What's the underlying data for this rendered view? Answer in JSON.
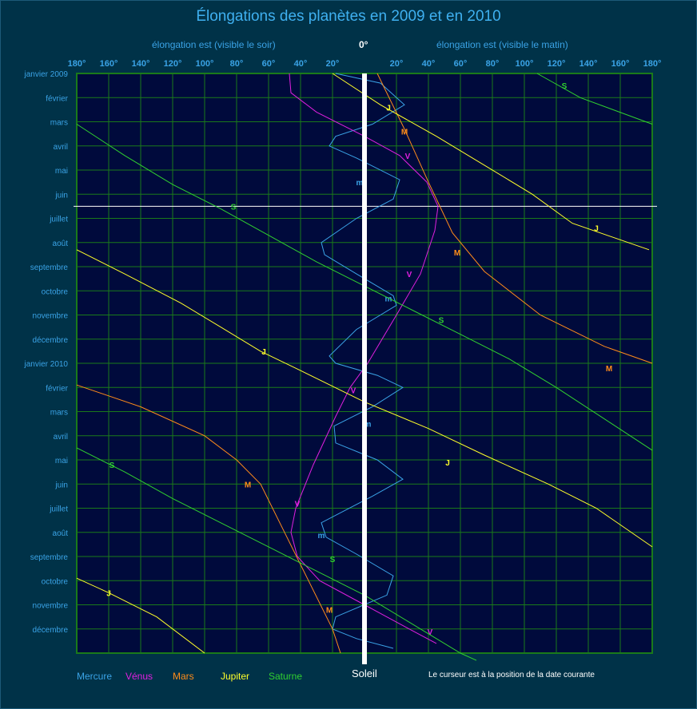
{
  "header": {
    "title": "Élongations des planètes en 2009 et en 2010",
    "left_label": "élongation est (visible le soir)",
    "right_label": "élongation est (visible le matin)",
    "zero_label": "0°"
  },
  "footer": {
    "sun_label": "Soleil",
    "cursor_note": "Le curseur est à la position de la date courante"
  },
  "colors": {
    "background": "#003248",
    "plot_background": "#000a3c",
    "grid": "#1a7a1a",
    "axis_text": "#3aa3e6",
    "mercure": "#3aa3e6",
    "venus": "#e020e0",
    "mars": "#ff8c1a",
    "jupiter": "#ffff2a",
    "saturne": "#30d030",
    "sun": "#ffffff"
  },
  "chart_data": {
    "type": "line",
    "title": "Élongations des planètes en 2009 et en 2010",
    "x_ticks": [
      "180°",
      "160°",
      "140°",
      "120°",
      "100°",
      "80°",
      "60°",
      "40°",
      "20°",
      "20°",
      "40°",
      "60°",
      "80°",
      "100°",
      "120°",
      "140°",
      "160°",
      "180°"
    ],
    "xlim": [
      -180,
      180
    ],
    "month_labels": [
      "janvier 2009",
      "février",
      "mars",
      "avril",
      "mai",
      "juin",
      "juillet",
      "août",
      "septembre",
      "octobre",
      "novembre",
      "décembre",
      "janvier 2010",
      "février",
      "mars",
      "avril",
      "mai",
      "juin",
      "juillet",
      "août",
      "septembre",
      "octobre",
      "novembre",
      "décembre"
    ],
    "cursor_month": 5,
    "grid": true,
    "series": [
      {
        "name": "Mercure",
        "key": "mercure",
        "marker": "m",
        "points": [
          [
            -18,
            0
          ],
          [
            10,
            0.4
          ],
          [
            25,
            1.3
          ],
          [
            5,
            2.1
          ],
          [
            -18,
            2.6
          ],
          [
            -22,
            3.0
          ],
          [
            -5,
            3.5
          ],
          [
            22,
            4.4
          ],
          [
            18,
            5.2
          ],
          [
            -5,
            6.0
          ],
          [
            -27,
            7.0
          ],
          [
            -25,
            7.5
          ],
          [
            -5,
            8.3
          ],
          [
            18,
            9.2
          ],
          [
            20,
            9.6
          ],
          [
            -5,
            10.6
          ],
          [
            -22,
            11.7
          ],
          [
            -18,
            12.0
          ],
          [
            8,
            12.5
          ],
          [
            24,
            13.0
          ],
          [
            5,
            13.8
          ],
          [
            -19,
            14.6
          ],
          [
            -18,
            15.3
          ],
          [
            8,
            16.0
          ],
          [
            24,
            16.8
          ],
          [
            5,
            17.5
          ],
          [
            -27,
            18.6
          ],
          [
            -24,
            19.2
          ],
          [
            -5,
            19.9
          ],
          [
            18,
            20.8
          ],
          [
            14,
            21.6
          ],
          [
            -18,
            22.5
          ],
          [
            -20,
            23.0
          ],
          [
            -5,
            23.4
          ],
          [
            18,
            23.8
          ]
        ],
        "labels": [
          [
            -3,
            4.5
          ],
          [
            15,
            9.3
          ],
          [
            2,
            14.5
          ],
          [
            -27,
            19.1
          ]
        ]
      },
      {
        "name": "Vénus",
        "key": "venus",
        "marker": "V",
        "points": [
          [
            -47,
            0
          ],
          [
            -46,
            0.8
          ],
          [
            -30,
            1.6
          ],
          [
            0,
            2.6
          ],
          [
            22,
            3.4
          ],
          [
            39,
            4.5
          ],
          [
            46,
            5.5
          ],
          [
            44,
            6.5
          ],
          [
            35,
            8.3
          ],
          [
            20,
            10.0
          ],
          [
            2,
            12.0
          ],
          [
            -9,
            13.0
          ],
          [
            -18,
            14.2
          ],
          [
            -32,
            16.2
          ],
          [
            -43,
            18.0
          ],
          [
            -46,
            19.0
          ],
          [
            -42,
            20.0
          ],
          [
            -28,
            21.0
          ],
          [
            0,
            22.0
          ],
          [
            28,
            23.0
          ],
          [
            45,
            23.6
          ]
        ],
        "labels": [
          [
            27,
            3.4
          ],
          [
            28,
            8.3
          ],
          [
            -7,
            13.1
          ],
          [
            -42,
            17.8
          ],
          [
            41,
            23.1
          ]
        ]
      },
      {
        "name": "Mars",
        "key": "mars",
        "marker": "M",
        "points": [
          [
            8,
            0
          ],
          [
            25,
            2.3
          ],
          [
            40,
            4.5
          ],
          [
            55,
            6.6
          ],
          [
            75,
            8.2
          ],
          [
            110,
            10.0
          ],
          [
            150,
            11.3
          ],
          [
            180,
            12.0
          ],
          [
            -180,
            12.9
          ],
          [
            -140,
            13.8
          ],
          [
            -100,
            15.0
          ],
          [
            -80,
            16.0
          ],
          [
            -65,
            17.0
          ],
          [
            -50,
            19.0
          ],
          [
            -35,
            21.0
          ],
          [
            -20,
            23.0
          ],
          [
            -15,
            24.0
          ]
        ],
        "labels": [
          [
            25,
            2.4
          ],
          [
            58,
            7.4
          ],
          [
            153,
            12.2
          ],
          [
            -73,
            17.0
          ],
          [
            -22,
            22.2
          ]
        ]
      },
      {
        "name": "Jupiter",
        "key": "jupiter",
        "marker": "J",
        "points": [
          [
            -20,
            0
          ],
          [
            10,
            1.3
          ],
          [
            45,
            2.6
          ],
          [
            75,
            3.8
          ],
          [
            105,
            5.0
          ],
          [
            130,
            6.2
          ],
          [
            178,
            7.3
          ],
          [
            -180,
            7.3
          ],
          [
            -150,
            8.3
          ],
          [
            -115,
            9.5
          ],
          [
            -90,
            10.5
          ],
          [
            -65,
            11.5
          ],
          [
            -40,
            12.3
          ],
          [
            0,
            13.6
          ],
          [
            40,
            14.7
          ],
          [
            75,
            15.8
          ],
          [
            115,
            17.0
          ],
          [
            145,
            18.0
          ],
          [
            180,
            19.6
          ],
          [
            -180,
            20.9
          ],
          [
            -160,
            21.5
          ],
          [
            -130,
            22.5
          ],
          [
            -100,
            24.0
          ]
        ],
        "labels": [
          [
            15,
            1.4
          ],
          [
            145,
            6.4
          ],
          [
            -63,
            11.5
          ],
          [
            52,
            16.1
          ],
          [
            -160,
            21.5
          ]
        ]
      },
      {
        "name": "Saturne",
        "key": "saturne",
        "marker": "S",
        "points": [
          [
            108,
            0
          ],
          [
            135,
            1.0
          ],
          [
            180,
            2.1
          ],
          [
            -180,
            2.1
          ],
          [
            -150,
            3.4
          ],
          [
            -120,
            4.6
          ],
          [
            -90,
            5.6
          ],
          [
            -60,
            6.7
          ],
          [
            -30,
            7.8
          ],
          [
            0,
            8.8
          ],
          [
            30,
            9.8
          ],
          [
            60,
            10.8
          ],
          [
            90,
            11.8
          ],
          [
            120,
            13.0
          ],
          [
            150,
            14.3
          ],
          [
            180,
            15.6
          ],
          [
            -180,
            15.5
          ],
          [
            -150,
            16.5
          ],
          [
            -120,
            17.6
          ],
          [
            -90,
            18.6
          ],
          [
            -60,
            19.6
          ],
          [
            -30,
            20.6
          ],
          [
            0,
            21.6
          ],
          [
            30,
            22.8
          ],
          [
            60,
            24.0
          ],
          [
            70,
            24.3
          ]
        ],
        "labels": [
          [
            125,
            0.5
          ],
          [
            -82,
            5.5
          ],
          [
            48,
            10.2
          ],
          [
            -158,
            16.2
          ],
          [
            -20,
            20.1
          ]
        ]
      }
    ],
    "legend_position": "bottom-left",
    "legend": [
      "Mercure",
      "Vénus",
      "Mars",
      "Jupiter",
      "Saturne"
    ]
  }
}
